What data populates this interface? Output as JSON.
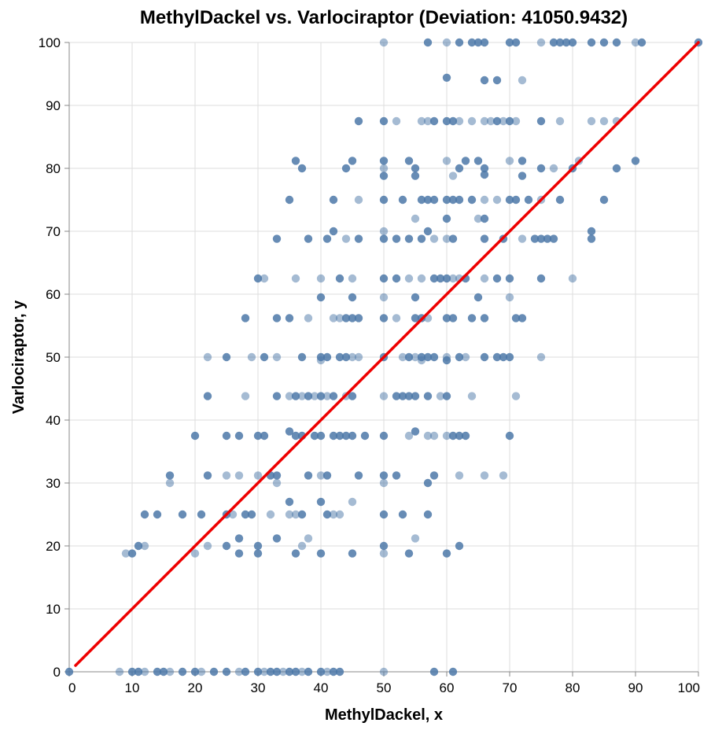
{
  "chart_data": {
    "type": "scatter",
    "title": "MethylDackel vs. Varlociraptor (Deviation: 41050.9432)",
    "xlabel": "MethylDackel, x",
    "ylabel": "Varlociraptor, y",
    "xlim": [
      0,
      100
    ],
    "ylim": [
      0,
      100
    ],
    "xticks": [
      0,
      10,
      20,
      30,
      40,
      50,
      60,
      70,
      80,
      90,
      100
    ],
    "yticks": [
      0,
      10,
      20,
      30,
      40,
      50,
      60,
      70,
      80,
      90,
      100
    ],
    "grid": true,
    "point_color": "#4c78a8",
    "reference_line": {
      "from": [
        0,
        0
      ],
      "to": [
        100,
        100
      ],
      "color": "#ee0000"
    },
    "points": [
      [
        0,
        0
      ],
      [
        8,
        0
      ],
      [
        10,
        0
      ],
      [
        11,
        0
      ],
      [
        12,
        0
      ],
      [
        14,
        0
      ],
      [
        15,
        0
      ],
      [
        16,
        0
      ],
      [
        18,
        0
      ],
      [
        20,
        0
      ],
      [
        21,
        0
      ],
      [
        23,
        0
      ],
      [
        25,
        0
      ],
      [
        27,
        0
      ],
      [
        28,
        0
      ],
      [
        30,
        0
      ],
      [
        31,
        0
      ],
      [
        32,
        0
      ],
      [
        33,
        0
      ],
      [
        34,
        0
      ],
      [
        35,
        0
      ],
      [
        36,
        0
      ],
      [
        37,
        0
      ],
      [
        38,
        0
      ],
      [
        40,
        0
      ],
      [
        41,
        0
      ],
      [
        42,
        0
      ],
      [
        43,
        0
      ],
      [
        50,
        0
      ],
      [
        58,
        0
      ],
      [
        61,
        0
      ],
      [
        9,
        18.8
      ],
      [
        10,
        18.8
      ],
      [
        11,
        20
      ],
      [
        12,
        20
      ],
      [
        12,
        25
      ],
      [
        14,
        25
      ],
      [
        16,
        30
      ],
      [
        16,
        31.2
      ],
      [
        18,
        25
      ],
      [
        20,
        18.8
      ],
      [
        20,
        37.5
      ],
      [
        21,
        25
      ],
      [
        22,
        20
      ],
      [
        22,
        31.2
      ],
      [
        22,
        43.8
      ],
      [
        22,
        50
      ],
      [
        25,
        20
      ],
      [
        25,
        25
      ],
      [
        25,
        31.2
      ],
      [
        25,
        37.5
      ],
      [
        25,
        50
      ],
      [
        26,
        25
      ],
      [
        27,
        18.8
      ],
      [
        27,
        21.2
      ],
      [
        27,
        31.2
      ],
      [
        27,
        37.5
      ],
      [
        28,
        25
      ],
      [
        28,
        43.8
      ],
      [
        28,
        56.2
      ],
      [
        29,
        25
      ],
      [
        29,
        50
      ],
      [
        30,
        18.8
      ],
      [
        30,
        20
      ],
      [
        30,
        31.2
      ],
      [
        30,
        37.5
      ],
      [
        30,
        62.5
      ],
      [
        31,
        62.5
      ],
      [
        31,
        50
      ],
      [
        31,
        37.5
      ],
      [
        32,
        25
      ],
      [
        32,
        31.2
      ],
      [
        33,
        21.2
      ],
      [
        33,
        30
      ],
      [
        33,
        31.2
      ],
      [
        33,
        43.8
      ],
      [
        33,
        50
      ],
      [
        33,
        56.2
      ],
      [
        33,
        68.8
      ],
      [
        35,
        25
      ],
      [
        35,
        27
      ],
      [
        35,
        38.2
      ],
      [
        35,
        43.8
      ],
      [
        35,
        56.2
      ],
      [
        36,
        18.8
      ],
      [
        36,
        25
      ],
      [
        36,
        37.5
      ],
      [
        36,
        43.8
      ],
      [
        36,
        62.5
      ],
      [
        36,
        81.2
      ],
      [
        35,
        75
      ],
      [
        37,
        20
      ],
      [
        37,
        25
      ],
      [
        37,
        37.5
      ],
      [
        37,
        43.8
      ],
      [
        37,
        50
      ],
      [
        37,
        80
      ],
      [
        38,
        21.2
      ],
      [
        38,
        31.2
      ],
      [
        38,
        43.8
      ],
      [
        38,
        56.2
      ],
      [
        38,
        68.8
      ],
      [
        39,
        37.5
      ],
      [
        39,
        43.8
      ],
      [
        40,
        18.8
      ],
      [
        40,
        27
      ],
      [
        40,
        31.2
      ],
      [
        40,
        37.5
      ],
      [
        40,
        43.8
      ],
      [
        40,
        49.5
      ],
      [
        40,
        50
      ],
      [
        40,
        59.5
      ],
      [
        40,
        62.5
      ],
      [
        41,
        25
      ],
      [
        41,
        31.2
      ],
      [
        41,
        43.8
      ],
      [
        41,
        50
      ],
      [
        41,
        68.8
      ],
      [
        42,
        25
      ],
      [
        42,
        37.5
      ],
      [
        42,
        43.8
      ],
      [
        42,
        56.2
      ],
      [
        42,
        70
      ],
      [
        42,
        75
      ],
      [
        43,
        25
      ],
      [
        43,
        37.5
      ],
      [
        43,
        50
      ],
      [
        43,
        56.2
      ],
      [
        43,
        62.5
      ],
      [
        44,
        37.5
      ],
      [
        44,
        43.8
      ],
      [
        44,
        50
      ],
      [
        44,
        56.2
      ],
      [
        44,
        68.8
      ],
      [
        44,
        80
      ],
      [
        45,
        18.8
      ],
      [
        45,
        27
      ],
      [
        45,
        37.5
      ],
      [
        45,
        43.8
      ],
      [
        45,
        50
      ],
      [
        45,
        56.2
      ],
      [
        45,
        59.5
      ],
      [
        45,
        62.5
      ],
      [
        45,
        81.2
      ],
      [
        46,
        31.2
      ],
      [
        46,
        50
      ],
      [
        46,
        56.2
      ],
      [
        46,
        68.8
      ],
      [
        46,
        75
      ],
      [
        46,
        87.5
      ],
      [
        47,
        37.5
      ],
      [
        50,
        18.8
      ],
      [
        50,
        20
      ],
      [
        50,
        25
      ],
      [
        50,
        30
      ],
      [
        50,
        31.2
      ],
      [
        50,
        37.5
      ],
      [
        50,
        43.8
      ],
      [
        50,
        50
      ],
      [
        50,
        56.2
      ],
      [
        50,
        59.5
      ],
      [
        50,
        62.5
      ],
      [
        50,
        68.8
      ],
      [
        50,
        70
      ],
      [
        50,
        75
      ],
      [
        50,
        78.8
      ],
      [
        50,
        80
      ],
      [
        50,
        81.2
      ],
      [
        50,
        87.5
      ],
      [
        50,
        100
      ],
      [
        52,
        31.2
      ],
      [
        52,
        43.8
      ],
      [
        52,
        56.2
      ],
      [
        52,
        62.5
      ],
      [
        52,
        68.8
      ],
      [
        52,
        87.5
      ],
      [
        53,
        25
      ],
      [
        53,
        43.8
      ],
      [
        53,
        50
      ],
      [
        53,
        75
      ],
      [
        54,
        18.8
      ],
      [
        54,
        37.5
      ],
      [
        54,
        43.8
      ],
      [
        54,
        50
      ],
      [
        54,
        62.5
      ],
      [
        54,
        68.8
      ],
      [
        54,
        81.2
      ],
      [
        55,
        21.2
      ],
      [
        55,
        38.2
      ],
      [
        55,
        43.8
      ],
      [
        55,
        50
      ],
      [
        55,
        56.2
      ],
      [
        55,
        59.5
      ],
      [
        55,
        72
      ],
      [
        55,
        78.8
      ],
      [
        55,
        80
      ],
      [
        56,
        49.5
      ],
      [
        56,
        50
      ],
      [
        56,
        56.2
      ],
      [
        56,
        62.5
      ],
      [
        56,
        68.8
      ],
      [
        56,
        75
      ],
      [
        56,
        87.5
      ],
      [
        57,
        25
      ],
      [
        57,
        30
      ],
      [
        57,
        37.5
      ],
      [
        57,
        43.8
      ],
      [
        57,
        50
      ],
      [
        57,
        56.2
      ],
      [
        57,
        70
      ],
      [
        57,
        75
      ],
      [
        57,
        87.5
      ],
      [
        57,
        100
      ],
      [
        58,
        31.2
      ],
      [
        58,
        37.5
      ],
      [
        58,
        50
      ],
      [
        58,
        62.5
      ],
      [
        58,
        68.8
      ],
      [
        58,
        75
      ],
      [
        58,
        87.5
      ],
      [
        59,
        43.8
      ],
      [
        59,
        62.5
      ],
      [
        60,
        18.8
      ],
      [
        60,
        37.5
      ],
      [
        60,
        43.8
      ],
      [
        60,
        49.5
      ],
      [
        60,
        50
      ],
      [
        60,
        56.2
      ],
      [
        60,
        62.5
      ],
      [
        60,
        68.8
      ],
      [
        60,
        72
      ],
      [
        60,
        75
      ],
      [
        60,
        81.2
      ],
      [
        60,
        87.5
      ],
      [
        60,
        94.4
      ],
      [
        60,
        100
      ],
      [
        61,
        37.5
      ],
      [
        61,
        56.2
      ],
      [
        61,
        62.5
      ],
      [
        61,
        68.8
      ],
      [
        61,
        75
      ],
      [
        61,
        78.8
      ],
      [
        61,
        87.5
      ],
      [
        62,
        20
      ],
      [
        62,
        31.2
      ],
      [
        62,
        37.5
      ],
      [
        62,
        50
      ],
      [
        62,
        62.5
      ],
      [
        62,
        75
      ],
      [
        62,
        80
      ],
      [
        62,
        87.5
      ],
      [
        62,
        100
      ],
      [
        63,
        37.5
      ],
      [
        63,
        50
      ],
      [
        63,
        62.5
      ],
      [
        63,
        81.2
      ],
      [
        64,
        43.8
      ],
      [
        64,
        56.2
      ],
      [
        64,
        75
      ],
      [
        64,
        87.5
      ],
      [
        64,
        100
      ],
      [
        65,
        59.5
      ],
      [
        65,
        72
      ],
      [
        65,
        81.2
      ],
      [
        65,
        100
      ],
      [
        66,
        31.2
      ],
      [
        66,
        50
      ],
      [
        66,
        56.2
      ],
      [
        66,
        62.5
      ],
      [
        66,
        68.8
      ],
      [
        66,
        72
      ],
      [
        66,
        75
      ],
      [
        66,
        79
      ],
      [
        66,
        80
      ],
      [
        66,
        87.5
      ],
      [
        66,
        94
      ],
      [
        66,
        100
      ],
      [
        67,
        87.5
      ],
      [
        68,
        50
      ],
      [
        68,
        62.5
      ],
      [
        68,
        75
      ],
      [
        68,
        87.5
      ],
      [
        68,
        94
      ],
      [
        69,
        31.2
      ],
      [
        69,
        50
      ],
      [
        69,
        68.8
      ],
      [
        69,
        87.5
      ],
      [
        70,
        37.5
      ],
      [
        70,
        50
      ],
      [
        70,
        59.5
      ],
      [
        70,
        62.5
      ],
      [
        70,
        75
      ],
      [
        70,
        81.2
      ],
      [
        70,
        87.5
      ],
      [
        70,
        100
      ],
      [
        71,
        43.8
      ],
      [
        71,
        56.2
      ],
      [
        71,
        75
      ],
      [
        71,
        87.5
      ],
      [
        71,
        100
      ],
      [
        72,
        56.2
      ],
      [
        72,
        68.8
      ],
      [
        72,
        78.8
      ],
      [
        72,
        81.2
      ],
      [
        72,
        94
      ],
      [
        73,
        75
      ],
      [
        74,
        68.8
      ],
      [
        75,
        50
      ],
      [
        75,
        62.5
      ],
      [
        75,
        68.8
      ],
      [
        75,
        75
      ],
      [
        75,
        80
      ],
      [
        75,
        87.5
      ],
      [
        75,
        100
      ],
      [
        76,
        68.8
      ],
      [
        77,
        68.8
      ],
      [
        77,
        80
      ],
      [
        77,
        100
      ],
      [
        78,
        75
      ],
      [
        78,
        87.5
      ],
      [
        78,
        100
      ],
      [
        79,
        100
      ],
      [
        80,
        62.5
      ],
      [
        80,
        80
      ],
      [
        80,
        100
      ],
      [
        81,
        81.2
      ],
      [
        83,
        68.8
      ],
      [
        83,
        70
      ],
      [
        83,
        87.5
      ],
      [
        83,
        100
      ],
      [
        85,
        75
      ],
      [
        85,
        87.5
      ],
      [
        85,
        100
      ],
      [
        87,
        80
      ],
      [
        87,
        87.5
      ],
      [
        87,
        100
      ],
      [
        90,
        81.2
      ],
      [
        90,
        100
      ],
      [
        91,
        100
      ],
      [
        100,
        100
      ]
    ]
  }
}
